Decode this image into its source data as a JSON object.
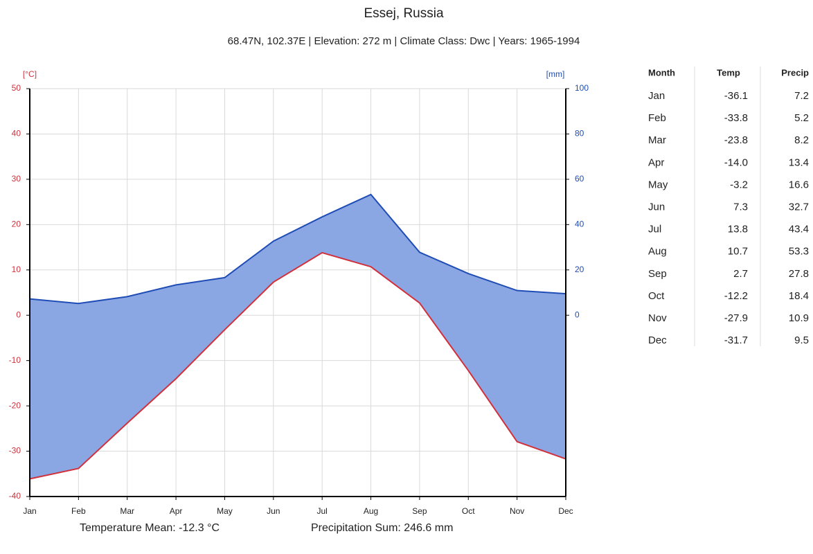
{
  "chart_data": {
    "type": "climate",
    "title": "Essej, Russia",
    "subtitle": "68.47N, 102.37E | Elevation: 272 m | Climate Class: Dwc | Years: 1965-1994",
    "ylabel": "[°C]",
    "y2label": "[mm]",
    "categories": [
      "Jan",
      "Feb",
      "Mar",
      "Apr",
      "May",
      "Jun",
      "Jul",
      "Aug",
      "Sep",
      "Oct",
      "Nov",
      "Dec"
    ],
    "series": [
      {
        "name": "Temp",
        "color": "#d0313c",
        "axis": "y",
        "values": [
          -36.1,
          -33.8,
          -23.8,
          -14,
          -3.2,
          7.3,
          13.8,
          10.7,
          2.7,
          -12.2,
          -27.9,
          -31.7
        ],
        "value_labels": [
          "-36.1",
          "-33.8",
          "-23.8",
          "-14.0",
          "-3.2",
          "7.3",
          "13.8",
          "10.7",
          "2.7",
          "-12.2",
          "-27.9",
          "-31.7"
        ]
      },
      {
        "name": "Precip",
        "color": "#1f4db5",
        "axis": "y2",
        "values": [
          7.2,
          5.2,
          8.2,
          13.4,
          16.6,
          32.7,
          43.4,
          53.3,
          27.8,
          18.4,
          10.9,
          9.5
        ]
      }
    ],
    "fill_color": "#8aa6e3",
    "ylim": [
      -40,
      50
    ],
    "yticks": [
      -40,
      -30,
      -20,
      -10,
      0,
      10,
      20,
      30,
      40,
      50
    ],
    "y2lim": [
      -80,
      100
    ],
    "y2ticks": [
      0,
      20,
      40,
      60,
      80,
      100
    ],
    "grid": true
  },
  "table": {
    "columns": [
      "Month",
      "Temp",
      "Precip"
    ]
  },
  "footer": {
    "temperature": "Temperature Mean: -12.3 °C",
    "precipitation": "Precipitation Sum: 246.6 mm"
  }
}
